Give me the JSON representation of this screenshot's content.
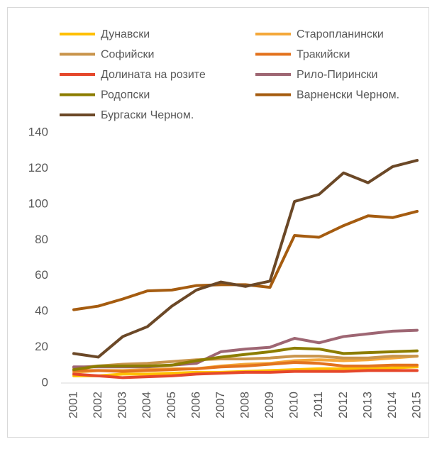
{
  "chart_data": {
    "type": "line",
    "categories": [
      "2001",
      "2002",
      "2003",
      "2004",
      "2005",
      "2006",
      "2007",
      "2008",
      "2009",
      "2010",
      "2011",
      "2012",
      "2013",
      "2014",
      "2015"
    ],
    "series": [
      {
        "name": "Дунавски",
        "color": "#ffc000",
        "values": [
          4,
          4,
          5,
          5,
          5.5,
          6,
          6,
          6.5,
          7,
          7.5,
          8,
          8,
          8,
          8.5,
          9
        ]
      },
      {
        "name": "Старопланински",
        "color": "#f4a83a",
        "values": [
          6,
          7,
          7,
          7.5,
          8,
          8,
          9.5,
          10.5,
          11,
          12.5,
          13,
          12.5,
          13,
          14,
          15
        ]
      },
      {
        "name": "Софийски",
        "color": "#c9954c",
        "values": [
          8.5,
          9.5,
          10.5,
          11,
          12,
          13,
          13.5,
          13.5,
          14,
          15,
          15,
          14,
          14,
          15,
          15
        ]
      },
      {
        "name": "Тракийски",
        "color": "#e3731e",
        "values": [
          7,
          7,
          6.5,
          7,
          7.5,
          8,
          9,
          9.5,
          10.5,
          11.5,
          11,
          9.5,
          9.5,
          10,
          10
        ]
      },
      {
        "name": "Долината на розите",
        "color": "#e5472b",
        "values": [
          5,
          4,
          3,
          3.5,
          4,
          5,
          5.5,
          6,
          6,
          6.5,
          6.5,
          6.5,
          7,
          7,
          7
        ]
      },
      {
        "name": "Рило-Пирински",
        "color": "#9e6673",
        "values": [
          9,
          9,
          9,
          9,
          10,
          11,
          17.5,
          19,
          20,
          25,
          22.5,
          26,
          27.5,
          29,
          29.5
        ]
      },
      {
        "name": "Родопски",
        "color": "#8c7d00",
        "values": [
          7.5,
          9.5,
          9.5,
          9.5,
          10,
          12.5,
          14.5,
          16,
          17.5,
          19.5,
          19,
          16.5,
          17,
          17.5,
          18
        ]
      },
      {
        "name": "Варненски Черном.",
        "color": "#a55c10",
        "values": [
          41,
          43,
          47,
          51.5,
          52,
          54.5,
          55,
          55,
          53.5,
          82.5,
          81.5,
          88,
          93.5,
          92.5,
          96
        ]
      },
      {
        "name": "Бургаски Черном.",
        "color": "#6b4827",
        "values": [
          16.5,
          14.5,
          26,
          31.5,
          43,
          52,
          56.5,
          54,
          57,
          101.5,
          105.5,
          117.5,
          112,
          121,
          124.5
        ]
      }
    ],
    "ylim": [
      0,
      140
    ],
    "yticks": [
      0,
      20,
      40,
      60,
      80,
      100,
      120,
      140
    ],
    "grid": false,
    "legend": "top"
  }
}
